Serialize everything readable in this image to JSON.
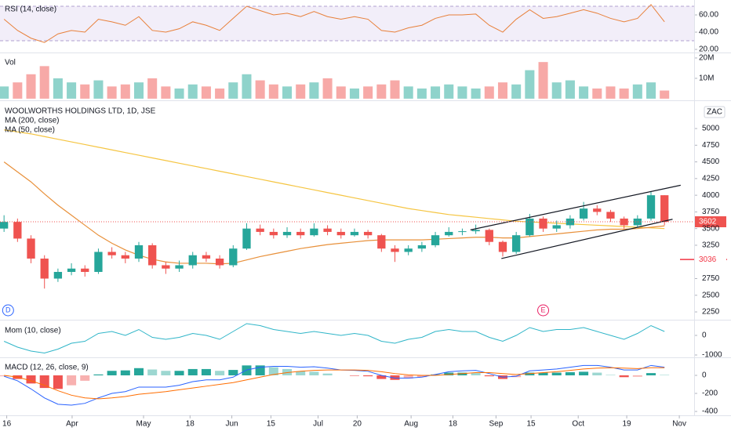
{
  "chart_data": [
    {
      "type": "line",
      "title": "RSI (14, close)",
      "color": "#e8803a",
      "values": [
        55,
        42,
        33,
        28,
        38,
        42,
        40,
        55,
        52,
        48,
        58,
        42,
        40,
        44,
        52,
        48,
        42,
        56,
        70,
        65,
        60,
        62,
        58,
        64,
        58,
        55,
        58,
        55,
        42,
        40,
        45,
        48,
        56,
        60,
        60,
        61,
        48,
        40,
        55,
        66,
        56,
        58,
        62,
        66,
        62,
        56,
        52,
        56,
        72,
        52
      ],
      "band": [
        30,
        70
      ],
      "band_color": "#7e57c2",
      "ylim": [
        16.4,
        77.3
      ],
      "yticks": [
        {
          "value": 20,
          "label": "20.00"
        },
        {
          "value": 40,
          "label": "40.00"
        },
        {
          "value": 60,
          "label": "60.00"
        }
      ]
    },
    {
      "type": "volume",
      "title": "Vol",
      "up_color": "#8fd3cb",
      "down_color": "#f7a9a7",
      "values": [
        6,
        8,
        12,
        16,
        10,
        8,
        7,
        9,
        6,
        7,
        8,
        10,
        6,
        5,
        7,
        6,
        5,
        8,
        12,
        9,
        7,
        6,
        7,
        8,
        10,
        6,
        5,
        6,
        7,
        9,
        6,
        5,
        6,
        7,
        6,
        5,
        6,
        8,
        7,
        14,
        18,
        8,
        9,
        6,
        5,
        6,
        5,
        7,
        8,
        4
      ],
      "ylim": [
        -0.8,
        22.3
      ],
      "yticks": [
        {
          "value": 10,
          "label": "10M"
        },
        {
          "value": 20,
          "label": "20M"
        }
      ]
    },
    {
      "type": "candlestick",
      "title": "WOOLWORTHS HOLDINGS LTD, 1D, JSE",
      "currency": "ZAC",
      "up_color": "#26a69a",
      "down_color": "#ef5350",
      "open": [
        3500,
        3600,
        3350,
        3050,
        2750,
        2850,
        2900,
        2850,
        3150,
        3100,
        3050,
        3250,
        2950,
        2900,
        2950,
        3100,
        3050,
        2950,
        3200,
        3500,
        3450,
        3400,
        3450,
        3400,
        3500,
        3450,
        3400,
        3450,
        3400,
        3200,
        3150,
        3200,
        3250,
        3400,
        3450,
        3460,
        3480,
        3300,
        3150,
        3400,
        3650,
        3500,
        3550,
        3650,
        3800,
        3750,
        3650,
        3550,
        3650,
        4000
      ],
      "high": [
        3700,
        3650,
        3400,
        3100,
        2900,
        2980,
        2950,
        3200,
        3220,
        3150,
        3300,
        3280,
        3000,
        3020,
        3150,
        3150,
        3100,
        3250,
        3580,
        3560,
        3500,
        3520,
        3500,
        3580,
        3550,
        3500,
        3500,
        3480,
        3420,
        3250,
        3250,
        3300,
        3450,
        3520,
        3500,
        3560,
        3500,
        3320,
        3450,
        3720,
        3680,
        3620,
        3700,
        3900,
        3850,
        3780,
        3680,
        3700,
        4050,
        4000
      ],
      "low": [
        3450,
        3300,
        2980,
        2600,
        2700,
        2800,
        2780,
        2820,
        3050,
        2980,
        3000,
        2900,
        2820,
        2850,
        2900,
        3000,
        2900,
        2920,
        3180,
        3400,
        3350,
        3360,
        3350,
        3380,
        3400,
        3350,
        3380,
        3350,
        3150,
        3000,
        3100,
        3150,
        3220,
        3380,
        3400,
        3420,
        3250,
        3080,
        3120,
        3380,
        3450,
        3450,
        3500,
        3620,
        3700,
        3600,
        3500,
        3520,
        3620,
        3550
      ],
      "close": [
        3600,
        3350,
        3050,
        2750,
        2850,
        2900,
        2850,
        3150,
        3100,
        3050,
        3250,
        2950,
        2900,
        2950,
        3100,
        3050,
        2950,
        3200,
        3500,
        3450,
        3400,
        3450,
        3400,
        3500,
        3450,
        3400,
        3450,
        3400,
        3200,
        3150,
        3200,
        3250,
        3400,
        3450,
        3460,
        3480,
        3300,
        3150,
        3400,
        3650,
        3500,
        3550,
        3650,
        3800,
        3750,
        3650,
        3550,
        3650,
        4000,
        3600
      ],
      "series": [
        {
          "name": "MA (200, close)",
          "color": "#f5c542",
          "values": [
            4980,
            4950,
            4920,
            4880,
            4840,
            4800,
            4760,
            4720,
            4680,
            4640,
            4600,
            4560,
            4520,
            4480,
            4440,
            4400,
            4360,
            4320,
            4280,
            4240,
            4200,
            4160,
            4120,
            4080,
            4040,
            4000,
            3960,
            3920,
            3880,
            3840,
            3800,
            3770,
            3740,
            3710,
            3690,
            3670,
            3650,
            3630,
            3610,
            3600,
            3590,
            3580,
            3570,
            3560,
            3550,
            3540,
            3530,
            3520,
            3510,
            3500
          ]
        },
        {
          "name": "MA (50, close)",
          "color": "#e8903a",
          "values": [
            4500,
            4350,
            4200,
            4020,
            3850,
            3700,
            3550,
            3400,
            3280,
            3180,
            3100,
            3040,
            3000,
            2980,
            2980,
            2980,
            2970,
            2980,
            3030,
            3080,
            3120,
            3160,
            3200,
            3230,
            3260,
            3280,
            3300,
            3320,
            3330,
            3330,
            3330,
            3330,
            3340,
            3350,
            3360,
            3370,
            3370,
            3360,
            3360,
            3380,
            3400,
            3420,
            3440,
            3460,
            3480,
            3490,
            3490,
            3500,
            3520,
            3540
          ]
        }
      ],
      "trend_lines": [
        {
          "x": [
            34.6,
            50.2
          ],
          "y": [
            3480,
            4150
          ]
        },
        {
          "x": [
            36.9,
            49.6
          ],
          "y": [
            3050,
            3640
          ]
        }
      ],
      "last_price": 3602,
      "alert_level": 3036,
      "alert_color": "#f23645",
      "events": [
        {
          "label": "D",
          "x": 0.3,
          "color": "#2962ff"
        },
        {
          "label": "E",
          "x": 40,
          "color": "#e91e63"
        }
      ],
      "ylim": [
        2133,
        5400
      ],
      "yticks": [
        2250,
        2500,
        2750,
        3250,
        3500,
        3750,
        4000,
        4250,
        4500,
        4750,
        5000
      ]
    },
    {
      "type": "line",
      "title": "Mom (10, close)",
      "color": "#2fb5c8",
      "values": [
        -300,
        -600,
        -800,
        -900,
        -700,
        -400,
        -300,
        100,
        200,
        0,
        300,
        -100,
        -200,
        -100,
        100,
        0,
        -200,
        200,
        600,
        500,
        300,
        200,
        100,
        200,
        100,
        0,
        100,
        0,
        -300,
        -400,
        -200,
        -100,
        200,
        300,
        200,
        200,
        -100,
        -300,
        0,
        400,
        200,
        300,
        300,
        400,
        200,
        0,
        -200,
        100,
        500,
        200
      ],
      "ylim": [
        -1120,
        720
      ],
      "yticks": [
        -1000,
        0
      ]
    },
    {
      "type": "macd",
      "title": "MACD (12, 26, close, 9)",
      "hist_up": "#26a69a",
      "hist_down": "#ef5350",
      "series": [
        {
          "color": "#2962ff",
          "values": [
            -10,
            -60,
            -150,
            -250,
            -320,
            -330,
            -310,
            -250,
            -200,
            -180,
            -130,
            -130,
            -130,
            -110,
            -70,
            -50,
            -50,
            -20,
            60,
            90,
            100,
            100,
            90,
            95,
            80,
            60,
            55,
            45,
            0,
            -30,
            -30,
            -20,
            10,
            40,
            50,
            55,
            20,
            -20,
            -10,
            50,
            60,
            70,
            90,
            110,
            110,
            90,
            60,
            60,
            110,
            90
          ]
        },
        {
          "color": "#ff6d00",
          "values": [
            0,
            -20,
            -60,
            -110,
            -170,
            -220,
            -250,
            -260,
            -250,
            -235,
            -210,
            -195,
            -180,
            -160,
            -140,
            -120,
            -100,
            -80,
            -50,
            -20,
            10,
            30,
            45,
            55,
            60,
            60,
            60,
            55,
            40,
            20,
            5,
            0,
            0,
            10,
            20,
            30,
            30,
            20,
            10,
            20,
            30,
            40,
            55,
            70,
            80,
            85,
            80,
            75,
            85,
            85
          ]
        },
        {
          "values": [
            -10,
            -40,
            -90,
            -140,
            -150,
            -110,
            -60,
            10,
            50,
            55,
            80,
            65,
            50,
            50,
            70,
            70,
            50,
            60,
            110,
            110,
            90,
            70,
            45,
            40,
            20,
            0,
            -5,
            -10,
            -40,
            -50,
            -35,
            -20,
            10,
            30,
            30,
            25,
            -10,
            -40,
            -20,
            30,
            30,
            30,
            35,
            40,
            30,
            5,
            -20,
            -15,
            25,
            5
          ]
        }
      ],
      "ylim": [
        -443,
        191
      ],
      "yticks": [
        -400,
        -200,
        0
      ],
      "xlim": [
        -0.3,
        51.2
      ],
      "xticks": [
        {
          "value": 0.2,
          "label": "16"
        },
        {
          "value": 5.05,
          "label": "Apr"
        },
        {
          "value": 10.35,
          "label": "May"
        },
        {
          "value": 13.8,
          "label": "18"
        },
        {
          "value": 16.9,
          "label": "Jun"
        },
        {
          "value": 19.8,
          "label": "15"
        },
        {
          "value": 23.3,
          "label": "Jul"
        },
        {
          "value": 26.2,
          "label": "20"
        },
        {
          "value": 30.2,
          "label": "Aug"
        },
        {
          "value": 33.3,
          "label": "18"
        },
        {
          "value": 36.5,
          "label": "Sep"
        },
        {
          "value": 39.1,
          "label": "15"
        },
        {
          "value": 42.6,
          "label": "Oct"
        },
        {
          "value": 46.2,
          "label": "19"
        },
        {
          "value": 50.1,
          "label": "Nov"
        }
      ]
    }
  ]
}
